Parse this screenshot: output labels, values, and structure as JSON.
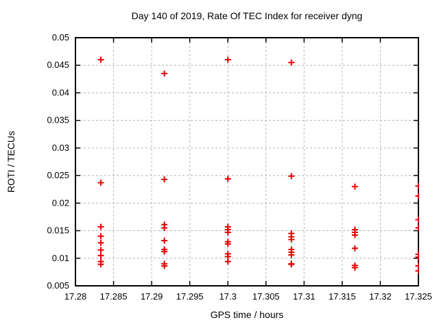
{
  "chart_data": {
    "type": "scatter",
    "title": "Day 140 of 2019, Rate Of TEC Index for receiver dyng",
    "xlabel": "GPS time / hours",
    "ylabel": "ROTI / TECUs",
    "xlim": [
      17.28,
      17.325
    ],
    "ylim": [
      0.005,
      0.05
    ],
    "xticks": [
      17.28,
      17.285,
      17.29,
      17.295,
      17.3,
      17.305,
      17.31,
      17.315,
      17.32,
      17.325
    ],
    "xtick_labels": [
      "17.28",
      "17.285",
      "17.29",
      "17.295",
      "17.3",
      "17.305",
      "17.31",
      "17.315",
      "17.32",
      "17.325"
    ],
    "yticks": [
      0.005,
      0.01,
      0.015,
      0.02,
      0.025,
      0.03,
      0.035,
      0.04,
      0.045,
      0.05
    ],
    "ytick_labels": [
      "0.005",
      "0.01",
      "0.015",
      "0.02",
      "0.025",
      "0.03",
      "0.035",
      "0.04",
      "0.045",
      "0.05"
    ],
    "grid": true,
    "legend": false,
    "marker": {
      "shape": "plus",
      "color": "#e10000",
      "size": 9
    },
    "axis_color": "#000000",
    "grid_color": "#b4b4b4",
    "series": [
      {
        "name": "ROTI",
        "points": [
          [
            17.283333,
            0.046
          ],
          [
            17.283333,
            0.0237
          ],
          [
            17.283333,
            0.0157
          ],
          [
            17.283333,
            0.014
          ],
          [
            17.283333,
            0.0128
          ],
          [
            17.283333,
            0.0115
          ],
          [
            17.283333,
            0.0105
          ],
          [
            17.283333,
            0.0094
          ],
          [
            17.283333,
            0.0089
          ],
          [
            17.291667,
            0.0435
          ],
          [
            17.291667,
            0.0243
          ],
          [
            17.291667,
            0.0161
          ],
          [
            17.291667,
            0.0155
          ],
          [
            17.291667,
            0.0132
          ],
          [
            17.291667,
            0.0116
          ],
          [
            17.291667,
            0.0112
          ],
          [
            17.291667,
            0.009
          ],
          [
            17.291667,
            0.0086
          ],
          [
            17.3,
            0.046
          ],
          [
            17.3,
            0.0244
          ],
          [
            17.3,
            0.0157
          ],
          [
            17.3,
            0.0152
          ],
          [
            17.3,
            0.0147
          ],
          [
            17.3,
            0.013
          ],
          [
            17.3,
            0.0126
          ],
          [
            17.3,
            0.0108
          ],
          [
            17.3,
            0.0103
          ],
          [
            17.3,
            0.0094
          ],
          [
            17.308333,
            0.0455
          ],
          [
            17.308333,
            0.0249
          ],
          [
            17.308333,
            0.0145
          ],
          [
            17.308333,
            0.0139
          ],
          [
            17.308333,
            0.0134
          ],
          [
            17.308333,
            0.0116
          ],
          [
            17.308333,
            0.0111
          ],
          [
            17.308333,
            0.0106
          ],
          [
            17.308333,
            0.009
          ],
          [
            17.308333,
            0.0089
          ],
          [
            17.316667,
            0.023
          ],
          [
            17.316667,
            0.0152
          ],
          [
            17.316667,
            0.0147
          ],
          [
            17.316667,
            0.0142
          ],
          [
            17.316667,
            0.0118
          ],
          [
            17.316667,
            0.0087
          ],
          [
            17.316667,
            0.0083
          ],
          [
            17.325,
            0.0231
          ],
          [
            17.325,
            0.0213
          ],
          [
            17.325,
            0.017
          ],
          [
            17.325,
            0.0155
          ],
          [
            17.325,
            0.0107
          ],
          [
            17.325,
            0.0102
          ],
          [
            17.325,
            0.0086
          ],
          [
            17.325,
            0.0077
          ]
        ]
      }
    ]
  }
}
